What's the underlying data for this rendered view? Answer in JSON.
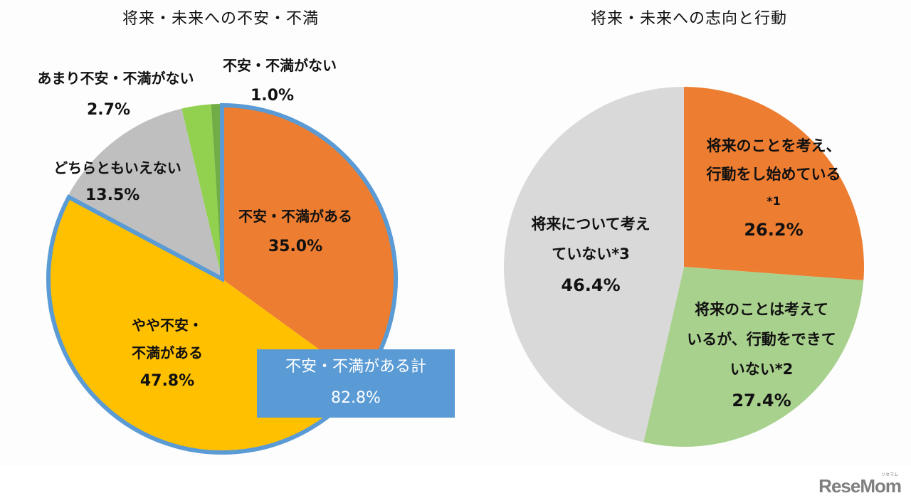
{
  "chart_data": [
    {
      "type": "pie",
      "title": "将来・未来への不安・不満",
      "start_angle": "12 o'clock, clockwise",
      "slices": [
        {
          "label": "不安・不満がある",
          "value": 35.0,
          "color": "#ed7d31"
        },
        {
          "label": "やや不安・不満がある",
          "value": 47.8,
          "color": "#ffc000"
        },
        {
          "label": "どちらともいえない",
          "value": 13.5,
          "color": "#bfbfbf"
        },
        {
          "label": "あまり不安・不満がない",
          "value": 2.7,
          "color": "#92d050"
        },
        {
          "label": "不安・不満がない",
          "value": 1.0,
          "color": "#70ad47"
        }
      ],
      "annotations": [
        {
          "text": "不安・不満がある計",
          "value": 82.8,
          "note": "blue-outlined group of 不安・不満がある + やや不安・不満がある",
          "color": "#5b9bd5"
        }
      ]
    },
    {
      "type": "pie",
      "title": "将来・未来への志向と行動",
      "start_angle": "12 o'clock, clockwise",
      "slices": [
        {
          "label": "将来のことを考え、行動をし始めている*1",
          "value": 26.2,
          "color": "#ed7d31"
        },
        {
          "label": "将来のことは考えているが、行動をできていない*2",
          "value": 27.4,
          "color": "#a9d18e"
        },
        {
          "label": "将来について考えていない*3",
          "value": 46.4,
          "color": "#d9d9d9"
        }
      ]
    }
  ],
  "left": {
    "title": "将来・未来への不安・不満",
    "labels": {
      "fuan_aru": [
        "不安・不満がある",
        "35.0%"
      ],
      "yaya": [
        "やや不安・",
        "不満がある",
        "47.8%"
      ],
      "dochira": [
        "どちらともいえない",
        "13.5%"
      ],
      "amari": [
        "あまり不安・不満がない",
        "2.7%"
      ],
      "nai": [
        "不安・不満がない",
        "1.0%"
      ]
    },
    "total_box": {
      "label": "不安・不満がある計",
      "value": "82.8%"
    }
  },
  "right": {
    "title": "将来・未来への志向と行動",
    "labels": {
      "acting": [
        "将来のことを考え、",
        "行動をし始めている",
        "*1",
        "26.2%"
      ],
      "thinking": [
        "将来のことは考えて",
        "いるが、行動をできて",
        "いない*2",
        "27.4%"
      ],
      "not_thinking": [
        "将来について考え",
        "ていない*3",
        "46.4%"
      ]
    }
  },
  "logo": {
    "text": "ReseMom",
    "kana": "リセマム"
  }
}
